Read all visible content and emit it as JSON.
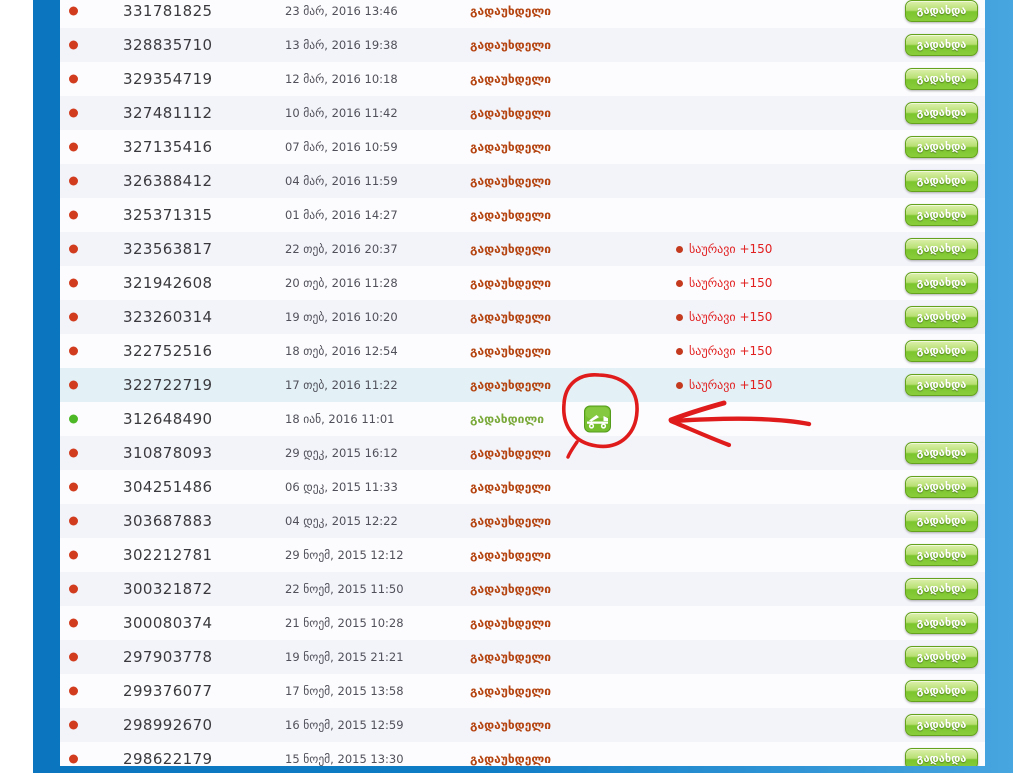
{
  "page": {
    "background": "#ffffff",
    "panel_gradient_left": "#0b76bf",
    "panel_gradient_right": "#47a5df",
    "content_background": "#fcfcfe",
    "row_alt_background": "#f3f3fa",
    "row_highlight_background": "#e3f1f6"
  },
  "labels": {
    "pay_button": "გადახდა",
    "penalty_badge": "საურავი +150",
    "status_unpaid": "გადაუხდელი",
    "status_paid": "გადახდილი"
  },
  "colors": {
    "status_unpaid_text": "#b4430f",
    "status_paid_text": "#7aa93a",
    "penalty_text": "#e11f1f",
    "dot_unpaid": "#d13c1e",
    "dot_paid": "#4db826",
    "pay_button_green": "#7cc52e",
    "annotation_red": "#e01b1b"
  },
  "icons": {
    "paid_row_icon": "tow-truck-icon"
  },
  "annotation": {
    "description": "hand-drawn red circle around tow-truck icon and red arrow pointing to it",
    "color": "#e01b1b"
  },
  "rows": [
    {
      "id": "331781825",
      "date": "23 მარ, 2016 13:46",
      "status": "unpaid",
      "penalty": false,
      "icon": false,
      "button": true,
      "highlight": false
    },
    {
      "id": "328835710",
      "date": "13 მარ, 2016 19:38",
      "status": "unpaid",
      "penalty": false,
      "icon": false,
      "button": true,
      "highlight": false
    },
    {
      "id": "329354719",
      "date": "12 მარ, 2016 10:18",
      "status": "unpaid",
      "penalty": false,
      "icon": false,
      "button": true,
      "highlight": false
    },
    {
      "id": "327481112",
      "date": "10 მარ, 2016 11:42",
      "status": "unpaid",
      "penalty": false,
      "icon": false,
      "button": true,
      "highlight": false
    },
    {
      "id": "327135416",
      "date": "07 მარ, 2016 10:59",
      "status": "unpaid",
      "penalty": false,
      "icon": false,
      "button": true,
      "highlight": false
    },
    {
      "id": "326388412",
      "date": "04 მარ, 2016 11:59",
      "status": "unpaid",
      "penalty": false,
      "icon": false,
      "button": true,
      "highlight": false
    },
    {
      "id": "325371315",
      "date": "01 მარ, 2016 14:27",
      "status": "unpaid",
      "penalty": false,
      "icon": false,
      "button": true,
      "highlight": false
    },
    {
      "id": "323563817",
      "date": "22 თებ, 2016 20:37",
      "status": "unpaid",
      "penalty": true,
      "icon": false,
      "button": true,
      "highlight": false
    },
    {
      "id": "321942608",
      "date": "20 თებ, 2016 11:28",
      "status": "unpaid",
      "penalty": true,
      "icon": false,
      "button": true,
      "highlight": false
    },
    {
      "id": "323260314",
      "date": "19 თებ, 2016 10:20",
      "status": "unpaid",
      "penalty": true,
      "icon": false,
      "button": true,
      "highlight": false
    },
    {
      "id": "322752516",
      "date": "18 თებ, 2016 12:54",
      "status": "unpaid",
      "penalty": true,
      "icon": false,
      "button": true,
      "highlight": false
    },
    {
      "id": "322722719",
      "date": "17 თებ, 2016 11:22",
      "status": "unpaid",
      "penalty": true,
      "icon": false,
      "button": true,
      "highlight": true
    },
    {
      "id": "312648490",
      "date": "18 იან, 2016 11:01",
      "status": "paid",
      "penalty": false,
      "icon": true,
      "button": false,
      "highlight": false
    },
    {
      "id": "310878093",
      "date": "29 დეკ, 2015 16:12",
      "status": "unpaid",
      "penalty": false,
      "icon": false,
      "button": true,
      "highlight": false
    },
    {
      "id": "304251486",
      "date": "06 დეკ, 2015 11:33",
      "status": "unpaid",
      "penalty": false,
      "icon": false,
      "button": true,
      "highlight": false
    },
    {
      "id": "303687883",
      "date": "04 დეკ, 2015 12:22",
      "status": "unpaid",
      "penalty": false,
      "icon": false,
      "button": true,
      "highlight": false
    },
    {
      "id": "302212781",
      "date": "29 ნოემ, 2015 12:12",
      "status": "unpaid",
      "penalty": false,
      "icon": false,
      "button": true,
      "highlight": false
    },
    {
      "id": "300321872",
      "date": "22 ნოემ, 2015 11:50",
      "status": "unpaid",
      "penalty": false,
      "icon": false,
      "button": true,
      "highlight": false
    },
    {
      "id": "300080374",
      "date": "21 ნოემ, 2015 10:28",
      "status": "unpaid",
      "penalty": false,
      "icon": false,
      "button": true,
      "highlight": false
    },
    {
      "id": "297903778",
      "date": "19 ნოემ, 2015 21:21",
      "status": "unpaid",
      "penalty": false,
      "icon": false,
      "button": true,
      "highlight": false
    },
    {
      "id": "299376077",
      "date": "17 ნოემ, 2015 13:58",
      "status": "unpaid",
      "penalty": false,
      "icon": false,
      "button": true,
      "highlight": false
    },
    {
      "id": "298992670",
      "date": "16 ნოემ, 2015 12:59",
      "status": "unpaid",
      "penalty": false,
      "icon": false,
      "button": true,
      "highlight": false
    },
    {
      "id": "298622179",
      "date": "15 ნოემ, 2015 13:30",
      "status": "unpaid",
      "penalty": false,
      "icon": false,
      "button": true,
      "highlight": false
    }
  ]
}
